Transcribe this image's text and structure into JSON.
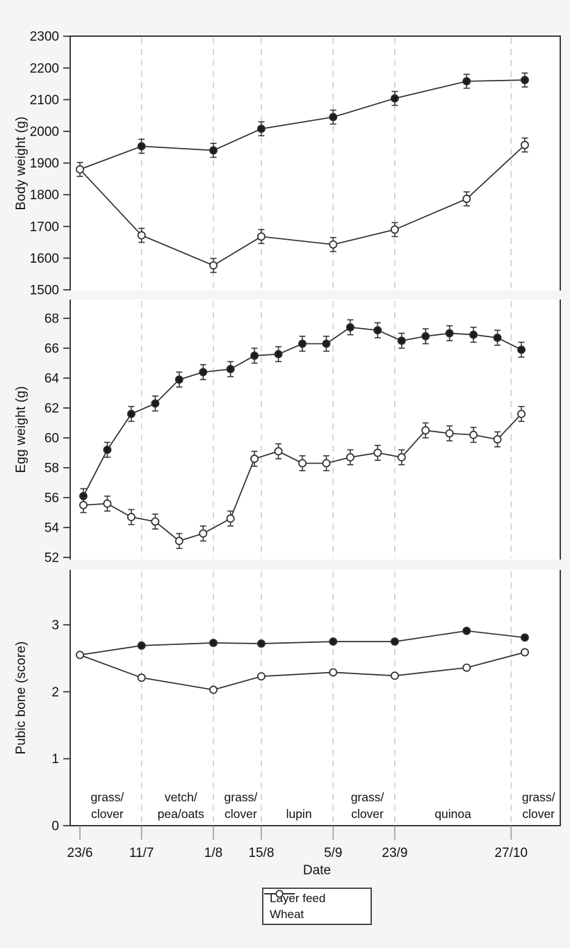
{
  "figure": {
    "x_axis_label": "Date",
    "x_ticks": [
      {
        "label": "23/6",
        "day": 0
      },
      {
        "label": "11/7",
        "day": 18
      },
      {
        "label": "1/8",
        "day": 39
      },
      {
        "label": "15/8",
        "day": 53
      },
      {
        "label": "5/9",
        "day": 74
      },
      {
        "label": "23/9",
        "day": 92
      },
      {
        "label": "27/10",
        "day": 126
      }
    ],
    "period_divider_days": [
      18,
      39,
      53,
      74,
      92,
      126
    ],
    "legend": {
      "position": "below-figure",
      "items": [
        {
          "label": "Layer feed",
          "marker": "filled-circle"
        },
        {
          "label": "Wheat",
          "marker": "open-circle"
        }
      ]
    },
    "colors": {
      "background": "#f5f5f4",
      "panel_background": "#ffffff",
      "frame": "#3d3d3d",
      "line": "#2e2e2e",
      "divider": "#c9c9c9",
      "text": "#111111"
    }
  },
  "chart_data": [
    {
      "id": "body-weight",
      "type": "line",
      "title": "",
      "xlabel": "Date",
      "ylabel": "Body weight (g)",
      "ylim": [
        1500,
        2300
      ],
      "yticks": [
        1500,
        1600,
        1700,
        1800,
        1900,
        2000,
        2100,
        2200,
        2300
      ],
      "grid": "vertical-dashed-period-dividers",
      "x_days": [
        0,
        18,
        39,
        53,
        74,
        92,
        113,
        130
      ],
      "series": [
        {
          "name": "Layer feed",
          "marker": "filled-circle",
          "shared_first_point": true,
          "error": 22,
          "values": [
            1880,
            1953,
            1940,
            2008,
            2045,
            2104,
            2158,
            2162
          ]
        },
        {
          "name": "Wheat",
          "marker": "open-circle",
          "error": 22,
          "values": [
            1880,
            1672,
            1577,
            1668,
            1643,
            1690,
            1787,
            1957
          ]
        }
      ]
    },
    {
      "id": "egg-weight",
      "type": "line",
      "title": "",
      "xlabel": "Date",
      "ylabel": "Egg weight (g)",
      "ylim": [
        52,
        68
      ],
      "yticks": [
        52,
        54,
        56,
        58,
        60,
        62,
        64,
        66,
        68
      ],
      "grid": "vertical-dashed-period-dividers",
      "x_days": [
        1,
        8,
        15,
        22,
        29,
        36,
        44,
        51,
        58,
        65,
        72,
        79,
        87,
        94,
        101,
        108,
        115,
        122,
        129
      ],
      "series": [
        {
          "name": "Layer feed",
          "marker": "filled-circle",
          "error": 0.5,
          "values": [
            56.1,
            59.2,
            61.6,
            62.3,
            63.9,
            64.4,
            64.6,
            65.5,
            65.6,
            66.3,
            66.3,
            67.4,
            67.2,
            66.5,
            66.8,
            67.0,
            66.9,
            66.7,
            65.9
          ]
        },
        {
          "name": "Wheat",
          "marker": "open-circle",
          "error": 0.5,
          "values": [
            55.5,
            55.6,
            54.7,
            54.4,
            53.1,
            53.6,
            54.6,
            58.6,
            59.1,
            58.3,
            58.3,
            58.7,
            59.0,
            58.7,
            60.5,
            60.3,
            60.2,
            59.9,
            61.6
          ]
        }
      ]
    },
    {
      "id": "pubic-bone",
      "type": "line",
      "title": "",
      "xlabel": "Date",
      "ylabel": "Pubic bone (score)",
      "ylim": [
        0,
        3.8
      ],
      "yticks": [
        0,
        1,
        2,
        3
      ],
      "grid": "vertical-dashed-period-dividers",
      "x_days": [
        0,
        18,
        39,
        53,
        74,
        92,
        113,
        130
      ],
      "series": [
        {
          "name": "Layer feed",
          "marker": "filled-circle",
          "shared_first_point": true,
          "error": 0,
          "values": [
            2.55,
            2.69,
            2.73,
            2.72,
            2.75,
            2.75,
            2.91,
            2.81
          ]
        },
        {
          "name": "Wheat",
          "marker": "open-circle",
          "error": 0,
          "values": [
            2.55,
            2.21,
            2.03,
            2.23,
            2.29,
            2.24,
            2.36,
            2.59
          ]
        }
      ],
      "period_labels": [
        {
          "lines": [
            "grass/",
            "clover"
          ],
          "day": 8
        },
        {
          "lines": [
            "vetch/",
            "pea/oats"
          ],
          "day": 29.5
        },
        {
          "lines": [
            "grass/",
            "clover"
          ],
          "day": 47
        },
        {
          "lines": [
            "lupin"
          ],
          "day": 64
        },
        {
          "lines": [
            "grass/",
            "clover"
          ],
          "day": 84
        },
        {
          "lines": [
            "quinoa"
          ],
          "day": 109
        },
        {
          "lines": [
            "grass/",
            "clover"
          ],
          "day": 134
        }
      ]
    }
  ]
}
